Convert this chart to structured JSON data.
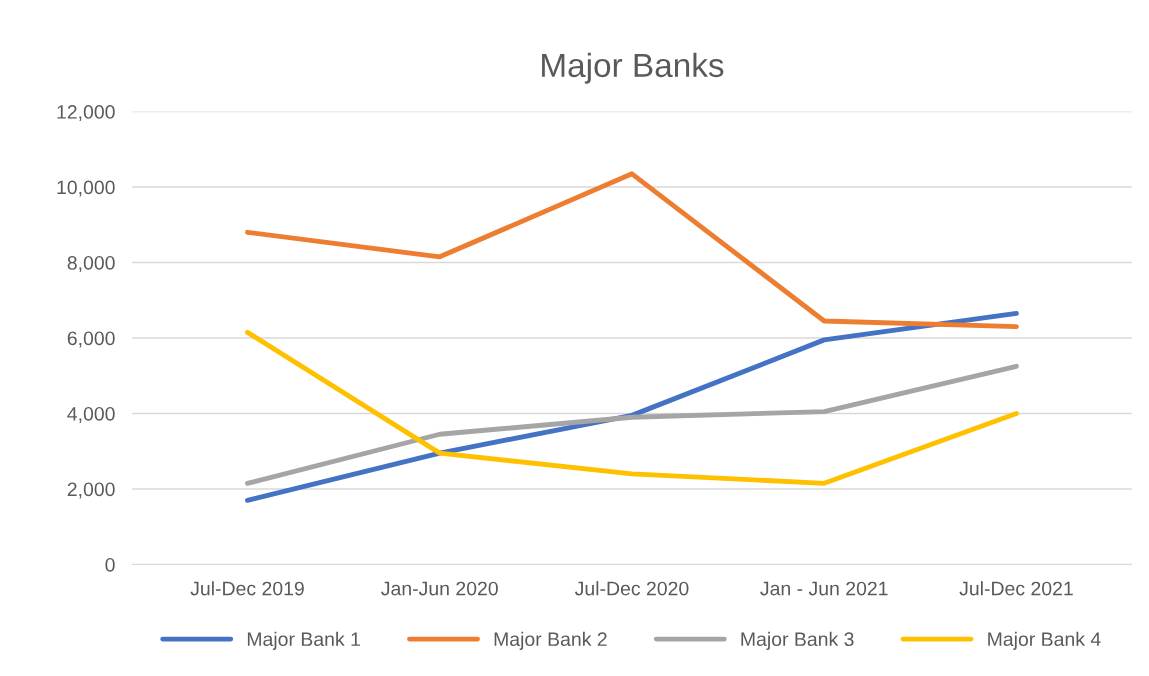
{
  "chart_data": {
    "type": "line",
    "title": "Major Banks",
    "categories": [
      "Jul-Dec 2019",
      "Jan-Jun 2020",
      "Jul-Dec 2020",
      "Jan - Jun 2021",
      "Jul-Dec 2021"
    ],
    "series": [
      {
        "name": "Major Bank 1",
        "color": "#4472c4",
        "values": [
          1700,
          2950,
          3950,
          5950,
          6650
        ]
      },
      {
        "name": "Major Bank 2",
        "color": "#ed7d31",
        "values": [
          8800,
          8150,
          10350,
          6450,
          6300
        ]
      },
      {
        "name": "Major Bank 3",
        "color": "#a5a5a5",
        "values": [
          2150,
          3450,
          3900,
          4050,
          5250
        ]
      },
      {
        "name": "Major Bank 4",
        "color": "#ffc000",
        "values": [
          6150,
          2950,
          2400,
          2150,
          4000
        ]
      }
    ],
    "ylim": [
      0,
      12000
    ],
    "yticks": [
      {
        "value": 0,
        "label": "0"
      },
      {
        "value": 2000,
        "label": "2,000"
      },
      {
        "value": 4000,
        "label": "4,000"
      },
      {
        "value": 6000,
        "label": "6,000"
      },
      {
        "value": 8000,
        "label": "8,000"
      },
      {
        "value": 10000,
        "label": "10,000"
      },
      {
        "value": 12000,
        "label": "12,000"
      }
    ],
    "grid": "y",
    "legend": "bottom",
    "marker": "none",
    "line_style": "solid"
  }
}
